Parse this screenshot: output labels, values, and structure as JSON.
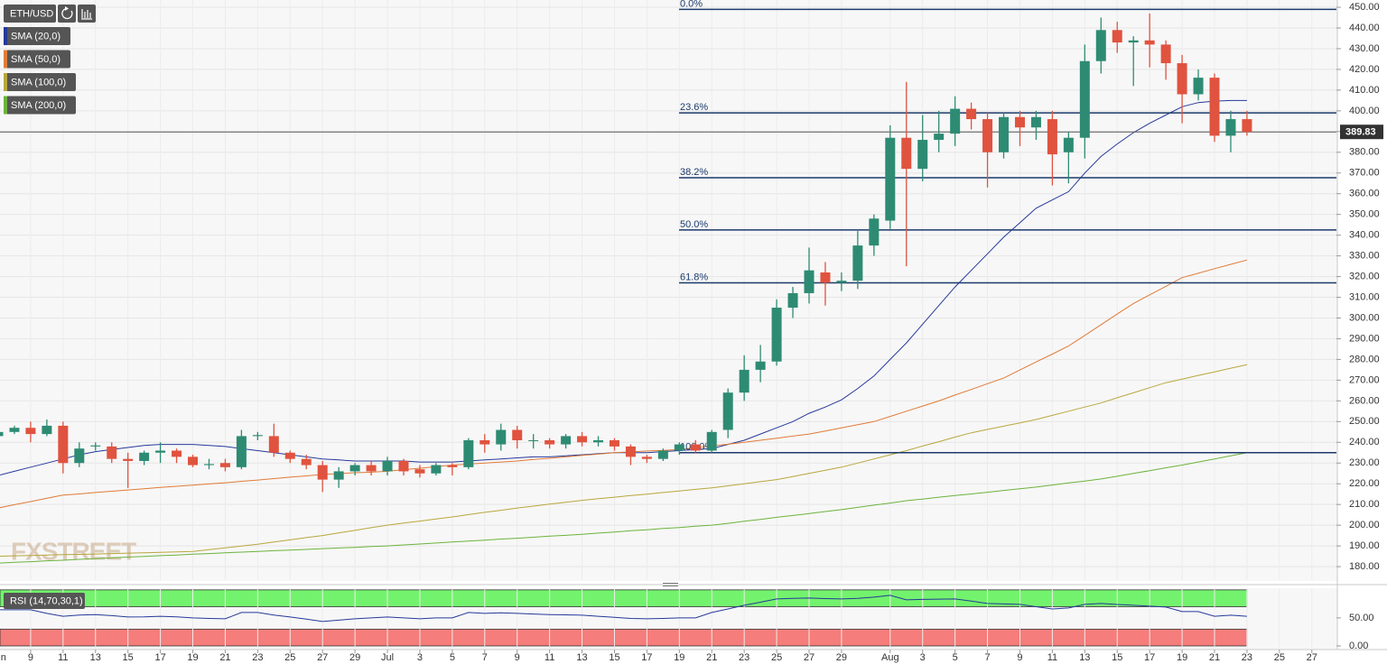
{
  "chart_data": [
    {
      "type": "candlestick",
      "symbol": "ETH/USD",
      "categories": [
        "Jun",
        null,
        "9",
        null,
        "11",
        null,
        "13",
        null,
        "15",
        null,
        "17",
        null,
        "19",
        null,
        "21",
        null,
        "23",
        null,
        "25",
        null,
        "27",
        null,
        "29",
        null,
        "Jul",
        null,
        "3",
        null,
        "5",
        null,
        "7",
        null,
        "9",
        null,
        "11",
        null,
        "13",
        null,
        "15",
        null,
        "17",
        null,
        "19",
        null,
        "21",
        null,
        "23",
        null,
        "25",
        null,
        "27",
        null,
        "29",
        null,
        null,
        "Aug",
        null,
        "3",
        null,
        "5",
        null,
        "7",
        null,
        "9",
        null,
        "11",
        null,
        "13",
        null,
        "15",
        null,
        "17",
        null,
        "19",
        null,
        "21",
        null,
        "23",
        null,
        "25",
        null,
        "27"
      ],
      "open": [
        243,
        245,
        247,
        244,
        248,
        230,
        238,
        238,
        232,
        231,
        235,
        236,
        233,
        229,
        230,
        228,
        243,
        243,
        235,
        232,
        229,
        222,
        226,
        229,
        226,
        231,
        227,
        225,
        229,
        228,
        241,
        239,
        246,
        241,
        241,
        239,
        243,
        240,
        241,
        238,
        233,
        232,
        236,
        239,
        236,
        246,
        264,
        275,
        279,
        305,
        312,
        322,
        317,
        318,
        335,
        347,
        387,
        372,
        386,
        389,
        401,
        396,
        380,
        397,
        392,
        396,
        380,
        387,
        424,
        439,
        433,
        434,
        432,
        423,
        408,
        416,
        388,
        396,
        null,
        null,
        null,
        null
      ],
      "high": [
        246,
        248,
        250,
        251,
        250,
        240,
        240,
        240,
        235,
        236,
        240,
        237,
        234,
        232,
        232,
        246,
        245,
        249,
        236,
        234,
        231,
        228,
        230,
        231,
        233,
        232,
        229,
        230,
        230,
        242,
        244,
        249,
        248,
        244,
        242,
        244,
        245,
        243,
        242,
        239,
        234,
        237,
        240,
        241,
        246,
        266,
        282,
        287,
        309,
        315,
        334,
        327,
        322,
        342,
        350,
        393,
        414,
        398,
        400,
        407,
        404,
        399,
        399,
        400,
        400,
        400,
        390,
        432,
        445,
        443,
        436,
        447,
        434,
        427,
        420,
        418,
        400,
        400,
        null,
        null,
        null,
        null
      ],
      "low": [
        242,
        244,
        240,
        243,
        225,
        228,
        236,
        230,
        218,
        229,
        230,
        230,
        228,
        227,
        226,
        227,
        241,
        233,
        230,
        227,
        216,
        218,
        224,
        224,
        224,
        224,
        223,
        224,
        224,
        227,
        235,
        236,
        237,
        237,
        237,
        237,
        238,
        238,
        236,
        229,
        230,
        231,
        234,
        235,
        235,
        242,
        260,
        269,
        277,
        300,
        307,
        306,
        313,
        314,
        330,
        343,
        325,
        366,
        380,
        383,
        391,
        363,
        377,
        383,
        386,
        364,
        365,
        377,
        418,
        428,
        412,
        421,
        415,
        394,
        405,
        385,
        380,
        388,
        null,
        null,
        null,
        null
      ],
      "close": [
        245,
        247,
        244,
        248,
        230,
        237,
        238.5,
        232,
        231,
        235,
        236,
        233,
        229,
        229.5,
        228,
        243,
        243.5,
        235,
        232,
        229,
        222,
        226,
        229,
        226,
        231,
        226,
        225,
        229,
        228,
        241,
        239,
        246,
        241,
        241,
        239,
        243,
        240,
        241,
        238,
        233,
        232,
        236,
        239,
        236,
        245,
        264,
        275,
        279,
        305,
        312,
        323,
        317,
        318,
        335,
        348,
        387,
        372,
        386,
        389,
        401,
        396,
        380,
        397,
        392,
        397,
        379,
        387,
        424,
        439,
        433,
        434,
        432,
        423,
        408,
        416,
        388,
        396,
        389.83,
        null,
        null,
        null,
        null
      ],
      "up_color": "#2e8b73",
      "down_color": "#e0533f",
      "series": [
        {
          "name": "SMA (20,0)",
          "color": "#26399a",
          "values": [
            224,
            226,
            228,
            230,
            232,
            234,
            235.5,
            236.5,
            237.5,
            238.5,
            239,
            239,
            239,
            238.5,
            238,
            237,
            236,
            235,
            234,
            233,
            232,
            231.5,
            231,
            231,
            231,
            231,
            230.5,
            230.5,
            230.5,
            231,
            231.5,
            232,
            232.5,
            233,
            233,
            233.5,
            234,
            234.5,
            235,
            235,
            235,
            235.5,
            236,
            236.5,
            237,
            239,
            241,
            244,
            247,
            250,
            254,
            257,
            260.5,
            266,
            272,
            280,
            288,
            297,
            306,
            315,
            323,
            331,
            339,
            346,
            353,
            357,
            361,
            370,
            378,
            384,
            389.5,
            394,
            398,
            402,
            404,
            404.7,
            405,
            405,
            null,
            null,
            null,
            null
          ]
        },
        {
          "name": "SMA (50,0)",
          "color": "#e07b39",
          "values": [
            208.3,
            209.9,
            211.4,
            213,
            214.5,
            215.1,
            215.8,
            216.4,
            217,
            217.6,
            218.2,
            218.8,
            219.3,
            219.9,
            220.5,
            221.2,
            221.8,
            222.5,
            223.2,
            223.8,
            224.5,
            224.9,
            225.3,
            225.6,
            226,
            226.8,
            227.5,
            228.3,
            229,
            229.5,
            230,
            230.5,
            231,
            231.7,
            232.3,
            233,
            233.7,
            234.3,
            235,
            235.4,
            235.8,
            236.1,
            236.5,
            237.4,
            238.3,
            239.1,
            240,
            241,
            242,
            243,
            244,
            245.5,
            247,
            248.5,
            250,
            252.5,
            255,
            257.5,
            260,
            262.8,
            265.5,
            268.3,
            271,
            274.9,
            278.8,
            282.6,
            286.5,
            291.6,
            296.8,
            301.9,
            307,
            311.2,
            315.3,
            319.5,
            321.6,
            323.8,
            325.9,
            328,
            null,
            null,
            null,
            null
          ]
        },
        {
          "name": "SMA (100,0)",
          "color": "#b8a73e",
          "values": [
            185,
            185.2,
            185.4,
            185.6,
            185.8,
            185.9,
            186.1,
            186.3,
            186.5,
            186.7,
            186.9,
            187.1,
            187.3,
            188.2,
            189.1,
            189.9,
            190.8,
            191.9,
            192.9,
            194,
            195,
            196.3,
            197.5,
            198.8,
            200,
            201,
            202,
            203,
            204,
            205.1,
            206.2,
            207.2,
            208.3,
            209.2,
            210.2,
            211.1,
            212,
            212.8,
            213.5,
            214.3,
            215,
            215.8,
            216.5,
            217.3,
            218,
            219,
            220,
            221,
            222,
            223.5,
            225,
            226.5,
            228,
            230,
            232,
            234,
            236,
            238.2,
            240.3,
            242.5,
            244.6,
            246.2,
            247.8,
            249.4,
            251,
            253,
            255,
            257,
            259,
            261.5,
            263.9,
            266.4,
            268.8,
            270.5,
            272.3,
            274,
            275.8,
            277.5,
            null,
            null,
            null,
            null
          ]
        },
        {
          "name": "SMA (200,0)",
          "color": "#6cb33d",
          "values": [
            181.7,
            182.1,
            182.4,
            182.8,
            183.1,
            183.5,
            183.9,
            184.2,
            184.6,
            184.9,
            185.3,
            185.6,
            186,
            186.3,
            186.7,
            187,
            187.3,
            187.7,
            188,
            188.3,
            188.7,
            189,
            189.3,
            189.7,
            190,
            190.5,
            190.9,
            191.4,
            191.9,
            192.3,
            192.8,
            193.3,
            193.7,
            194.2,
            194.7,
            195.1,
            195.6,
            196.2,
            196.7,
            197.3,
            197.8,
            198.4,
            198.9,
            199.5,
            200,
            200.9,
            201.9,
            202.8,
            203.8,
            204.7,
            205.6,
            206.6,
            207.5,
            208.6,
            209.7,
            210.7,
            211.8,
            212.6,
            213.5,
            214.3,
            215.1,
            215.9,
            216.8,
            217.6,
            218.4,
            219.4,
            220.4,
            221.3,
            222.3,
            223.6,
            225,
            226.3,
            227.7,
            229,
            230.5,
            232,
            233.5,
            235,
            null,
            null,
            null,
            null
          ]
        }
      ],
      "fib_levels": [
        {
          "label": "0.0%",
          "value": 449
        },
        {
          "label": "23.6%",
          "value": 399
        },
        {
          "label": "38.2%",
          "value": 367.7
        },
        {
          "label": "50.0%",
          "value": 342.5
        },
        {
          "label": "61.8%",
          "value": 317
        },
        {
          "label": "100.0%",
          "value": 235
        }
      ],
      "fib_color": "#1b3a6b",
      "last_price": 389.83,
      "ylim": [
        173.5,
        453.5
      ],
      "yticks": [
        {
          "value": 180,
          "label": "180.00"
        },
        {
          "value": 190,
          "label": "190.00"
        },
        {
          "value": 200,
          "label": "200.00"
        },
        {
          "value": 210,
          "label": "210.00"
        },
        {
          "value": 220,
          "label": "220.00"
        },
        {
          "value": 230,
          "label": "230.00"
        },
        {
          "value": 240,
          "label": "240.00"
        },
        {
          "value": 250,
          "label": "250.00"
        },
        {
          "value": 260,
          "label": "260.00"
        },
        {
          "value": 270,
          "label": "270.00"
        },
        {
          "value": 280,
          "label": "280.00"
        },
        {
          "value": 290,
          "label": "290.00"
        },
        {
          "value": 300,
          "label": "300.00"
        },
        {
          "value": 310,
          "label": "310.00"
        },
        {
          "value": 320,
          "label": "320.00"
        },
        {
          "value": 330,
          "label": "330.00"
        },
        {
          "value": 340,
          "label": "340.00"
        },
        {
          "value": 350,
          "label": "350.00"
        },
        {
          "value": 360,
          "label": "360.00"
        },
        {
          "value": 370,
          "label": "370.00"
        },
        {
          "value": 380,
          "label": "380.00"
        },
        {
          "value": 390,
          "label": "390.00"
        },
        {
          "value": 400,
          "label": "400.00"
        },
        {
          "value": 410,
          "label": "410.00"
        },
        {
          "value": 420,
          "label": "420.00"
        },
        {
          "value": 430,
          "label": "430.00"
        },
        {
          "value": 440,
          "label": "440.00"
        },
        {
          "value": 450,
          "label": "450.00"
        }
      ],
      "grid": true,
      "watermark": "FXSTREET"
    },
    {
      "type": "line",
      "title": "RSI (14,70,30,1)",
      "series": [
        {
          "color": "#26399a",
          "values": [
            64.5,
            64.5,
            64.5,
            58,
            53,
            55,
            56,
            54,
            51.6,
            52,
            53,
            52,
            50,
            49,
            48.4,
            59.7,
            59.7,
            55,
            51.6,
            48,
            43.5,
            46,
            48.4,
            50,
            51.6,
            50,
            48.4,
            50,
            50,
            59.7,
            58,
            59,
            58,
            57,
            56,
            55.5,
            54.8,
            53,
            51,
            49,
            48.4,
            49,
            50,
            50,
            59.7,
            66,
            72.6,
            78,
            83.9,
            85,
            85.5,
            84.5,
            83.9,
            85,
            87,
            90.3,
            82.3,
            83,
            83.5,
            83.9,
            80,
            75.8,
            75,
            74.2,
            70,
            66,
            67.7,
            74.2,
            75.8,
            74,
            72.6,
            71,
            69.4,
            61.3,
            61.3,
            53,
            54.8,
            53,
            null,
            null,
            null,
            null
          ]
        }
      ],
      "bands": [
        {
          "from": 70,
          "to": 100,
          "color": "#73f36d"
        },
        {
          "from": 0,
          "to": 30,
          "color": "#f57d7b"
        }
      ],
      "ylim": [
        -6.5,
        103
      ],
      "yticks": [
        {
          "value": 0,
          "label": "0.00"
        },
        {
          "value": 50,
          "label": "50.00"
        }
      ]
    }
  ]
}
